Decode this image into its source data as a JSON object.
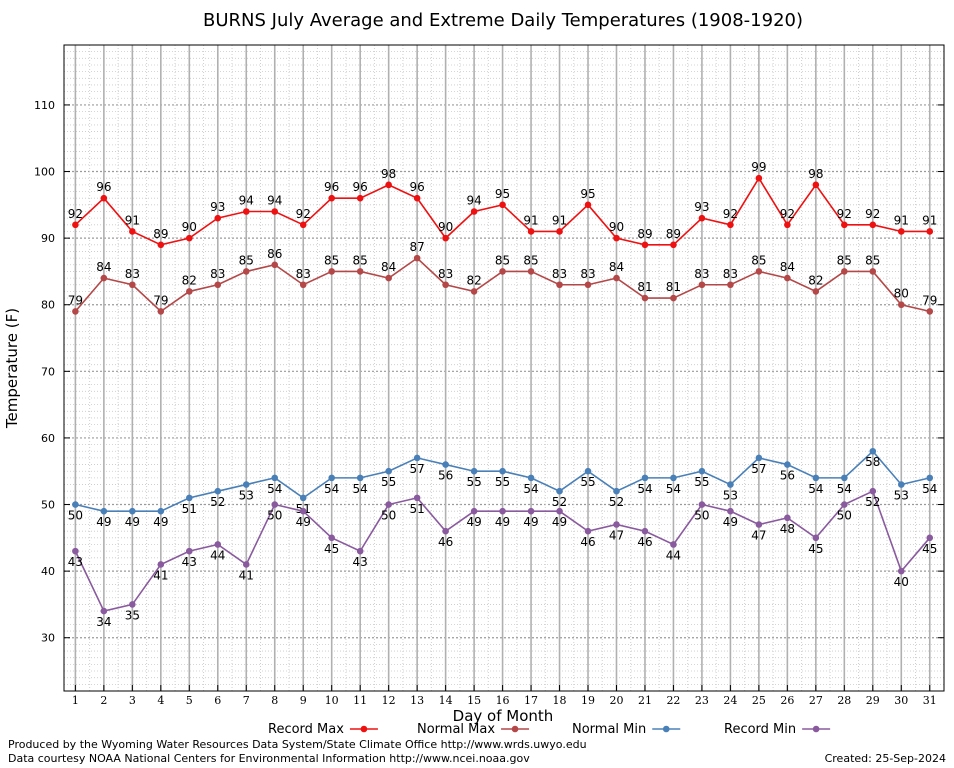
{
  "chart_data": {
    "type": "line",
    "title": "BURNS July Average and Extreme Daily Temperatures (1908-1920)",
    "xlabel": "Day of Month",
    "ylabel": "Temperature (F)",
    "x": [
      1,
      2,
      3,
      4,
      5,
      6,
      7,
      8,
      9,
      10,
      11,
      12,
      13,
      14,
      15,
      16,
      17,
      18,
      19,
      20,
      21,
      22,
      23,
      24,
      25,
      26,
      27,
      28,
      29,
      30,
      31
    ],
    "xlim": [
      0.6,
      31.5
    ],
    "ylim": [
      22,
      119
    ],
    "yticks": [
      30,
      40,
      50,
      60,
      70,
      80,
      90,
      100,
      110
    ],
    "grid": true,
    "legend_position": "bottom",
    "series": [
      {
        "name": "Record Max",
        "color": "#ee1111",
        "label_pos": "above",
        "values": [
          92,
          96,
          91,
          89,
          90,
          93,
          94,
          94,
          92,
          96,
          96,
          98,
          96,
          90,
          94,
          95,
          91,
          91,
          95,
          90,
          89,
          89,
          93,
          92,
          99,
          92,
          98,
          92,
          92,
          91,
          91
        ]
      },
      {
        "name": "Normal Max",
        "color": "#b44848",
        "label_pos": "above",
        "values": [
          79,
          84,
          83,
          79,
          82,
          83,
          85,
          86,
          83,
          85,
          85,
          84,
          87,
          83,
          82,
          85,
          85,
          83,
          83,
          84,
          81,
          81,
          83,
          83,
          85,
          84,
          82,
          85,
          85,
          80,
          79
        ]
      },
      {
        "name": "Normal Min",
        "color": "#4a80b8",
        "label_pos": "below",
        "values": [
          50,
          49,
          49,
          49,
          51,
          52,
          53,
          54,
          51,
          54,
          54,
          55,
          57,
          56,
          55,
          55,
          54,
          52,
          55,
          52,
          54,
          54,
          55,
          53,
          57,
          56,
          54,
          54,
          58,
          53,
          54
        ]
      },
      {
        "name": "Record Min",
        "color": "#8a5a9e",
        "label_pos": "below",
        "values": [
          43,
          34,
          35,
          41,
          43,
          44,
          41,
          50,
          49,
          45,
          43,
          50,
          51,
          46,
          49,
          49,
          49,
          49,
          46,
          47,
          46,
          44,
          50,
          49,
          47,
          48,
          45,
          50,
          52,
          40,
          45
        ]
      }
    ]
  },
  "footer": {
    "produced_by": "Produced by the Wyoming Water Resources Data System/State Climate Office http://www.wrds.uwyo.edu",
    "courtesy": "Data courtesy NOAA National Centers for Environmental Information http://www.ncei.noaa.gov",
    "created": "Created:  25-Sep-2024"
  }
}
